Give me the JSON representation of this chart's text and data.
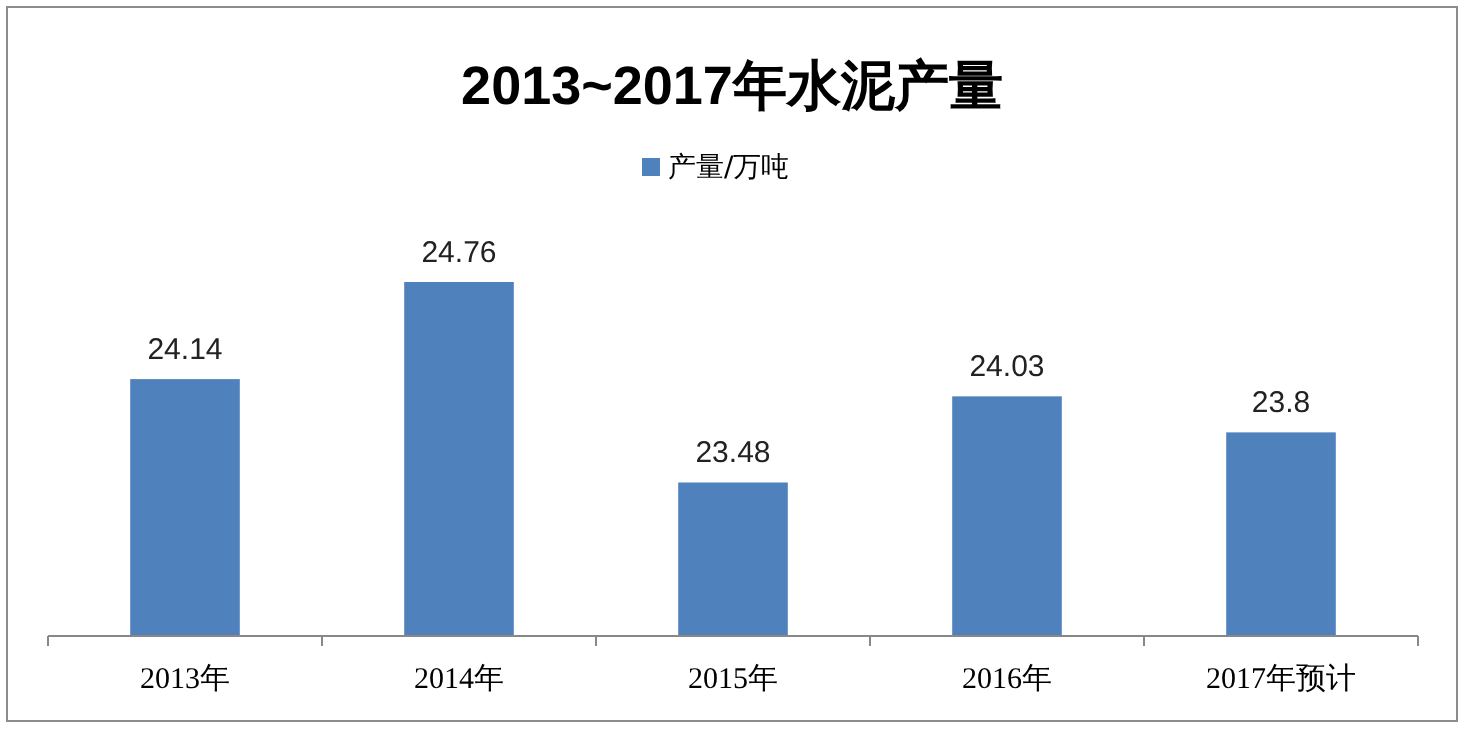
{
  "chart_data": {
    "type": "bar",
    "title": "2013~2017年水泥产量",
    "categories": [
      "2013年",
      "2014年",
      "2015年",
      "2016年",
      "2017年预计"
    ],
    "series": [
      {
        "name": "产量/万吨",
        "color": "#4f81bd",
        "values": [
          24.14,
          24.76,
          23.48,
          24.03,
          23.8
        ]
      }
    ],
    "ylim": [
      22.5,
      24.76
    ],
    "tick_labels": "x",
    "data_labels": true,
    "legend": "top",
    "grid": false
  }
}
